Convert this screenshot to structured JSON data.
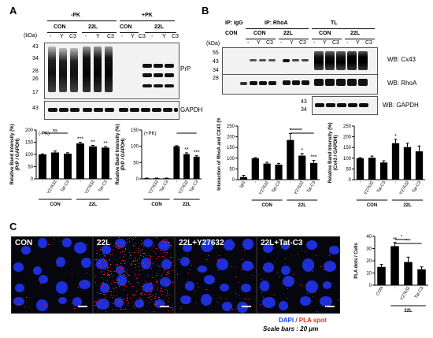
{
  "panels": {
    "a": "A",
    "b": "B",
    "c": "C"
  },
  "panel_a": {
    "pk_minus": "-PK",
    "pk_plus": "+PK",
    "con": "CON",
    "l22": "22L",
    "lanes": [
      "-",
      "Y",
      "C3",
      "-",
      "Y",
      "C3"
    ],
    "kda": "(kDa)",
    "markers": [
      "43",
      "34",
      "28",
      "26",
      "17"
    ],
    "gapdh_marker": "43",
    "prp": "PrP",
    "gapdh": "GAPDH"
  },
  "panel_b": {
    "ip_igg": "IP: IgG",
    "ip_rhoa": "IP: RhoA",
    "tl": "TL",
    "con": "CON",
    "l22": "22L",
    "lanes": [
      "-",
      "Y",
      "C3",
      "-",
      "Y",
      "C3"
    ],
    "kda": "(kDa)",
    "cx_markers": [
      "55",
      "43",
      "34"
    ],
    "rhoa_marker": "28",
    "gapdh_markers": [
      "43",
      "34"
    ],
    "wb_cx43": "WB: Cx43",
    "wb_rhoa": "WB: RhoA",
    "wb_gapdh": "WB: GAPDH"
  },
  "panel_c": {
    "micro": [
      "CON",
      "22L",
      "22L+Y27632",
      "22L+Tat-C3"
    ],
    "dapi": "DAPI",
    "slash": " / ",
    "pla": "PLA spot",
    "scale": "Scale bars : 20 μm"
  },
  "colors": {
    "dapi": "#1040ff",
    "pla": "#ff2020",
    "bar": "#000000"
  },
  "chart_data": [
    {
      "type": "bar",
      "id": "a-pk-minus",
      "inset": "(-PK)",
      "ylabel": "Relative Band Intensity (%)\n(PrP / GAPDH)",
      "ylim": [
        0,
        200
      ],
      "yticks": [
        0,
        50,
        100,
        150,
        200
      ],
      "categories": [
        "-",
        "Y27632",
        "Tat-C3",
        "-",
        "Y27632",
        "Tat-C3"
      ],
      "groups": [
        {
          "label": "CON",
          "span": [
            0,
            2
          ]
        },
        {
          "label": "22L",
          "span": [
            3,
            5
          ]
        }
      ],
      "values": [
        100,
        108,
        103,
        145,
        133,
        128
      ],
      "errors": [
        2,
        6,
        4,
        5,
        4,
        4
      ],
      "significance": [
        "",
        "",
        "",
        "***",
        "**",
        "**"
      ],
      "brackets": [
        {
          "from": 0,
          "to": 2,
          "label": "ns"
        }
      ]
    },
    {
      "type": "bar",
      "id": "a-pk-plus",
      "inset": "(+PK)",
      "ylabel": "Relative Band Intensity (%)\n(PrP / GAPDH)",
      "ylim": [
        0,
        150
      ],
      "yticks": [
        0,
        50,
        100,
        150
      ],
      "categories": [
        "-",
        "Y27632",
        "Tat-C3",
        "-",
        "Y27632",
        "Tat-C3"
      ],
      "groups": [
        {
          "label": "CON",
          "span": [
            0,
            2
          ]
        },
        {
          "label": "22L",
          "span": [
            3,
            5
          ]
        }
      ],
      "values": [
        2,
        2,
        2,
        100,
        76,
        68
      ],
      "errors": [
        0.5,
        0.5,
        0.5,
        2,
        4,
        3
      ],
      "significance": [
        "",
        "",
        "",
        "",
        "**",
        "***"
      ],
      "brackets": [
        {
          "from": 3,
          "to": 5,
          "label": ""
        }
      ]
    },
    {
      "type": "bar",
      "id": "b-interaction",
      "ylabel": "Interaction of RhoA and CX43 (%)",
      "ylim": [
        0,
        250
      ],
      "yticks": [
        0,
        50,
        100,
        150,
        200,
        250
      ],
      "categories": [
        "IgG",
        "-",
        "Y27632",
        "Tat-C3",
        "-",
        "Y27632",
        "Tat-C3"
      ],
      "groups": [
        {
          "label": "CON",
          "span": [
            1,
            3
          ]
        },
        {
          "label": "22L",
          "span": [
            4,
            6
          ]
        }
      ],
      "values": [
        12,
        100,
        75,
        70,
        185,
        112,
        78
      ],
      "errors": [
        8,
        3,
        6,
        6,
        30,
        10,
        12
      ],
      "significance": [
        "",
        "",
        "",
        "",
        "*",
        "*",
        "***"
      ],
      "brackets": [
        {
          "from": 4,
          "to": 5,
          "label": ""
        },
        {
          "from": 4,
          "to": 6,
          "label": ""
        }
      ]
    },
    {
      "type": "bar",
      "id": "b-cx43",
      "ylabel": "Relative Band Intensity (%)\n(Cx43 / GAPDH)",
      "ylim": [
        0,
        250
      ],
      "yticks": [
        0,
        50,
        100,
        150,
        200,
        250
      ],
      "categories": [
        "-",
        "Y27632",
        "Tat-C3",
        "-",
        "Y27632",
        "Tat-C3"
      ],
      "groups": [
        {
          "label": "CON",
          "span": [
            0,
            2
          ]
        },
        {
          "label": "22L",
          "span": [
            3,
            5
          ]
        }
      ],
      "values": [
        100,
        102,
        80,
        170,
        152,
        132
      ],
      "errors": [
        3,
        8,
        8,
        18,
        18,
        25
      ],
      "significance": [
        "",
        "",
        "",
        "*",
        "",
        ""
      ],
      "brackets": []
    },
    {
      "type": "bar",
      "id": "c-pla",
      "ylabel": "PLA dots / Cells",
      "ylim": [
        0,
        40
      ],
      "yticks": [
        0,
        10,
        20,
        30,
        40
      ],
      "categories": [
        "CON",
        "-",
        "Y27632",
        "Tat-C3"
      ],
      "groups": [
        {
          "label": "22L",
          "span": [
            1,
            3
          ]
        }
      ],
      "values": [
        15,
        32,
        19,
        13
      ],
      "errors": [
        2,
        3,
        4,
        2
      ],
      "significance": [
        "",
        "**",
        "",
        ""
      ],
      "brackets": [
        {
          "from": 1,
          "to": 2,
          "label": "*"
        },
        {
          "from": 1,
          "to": 3,
          "label": "***"
        }
      ]
    }
  ]
}
